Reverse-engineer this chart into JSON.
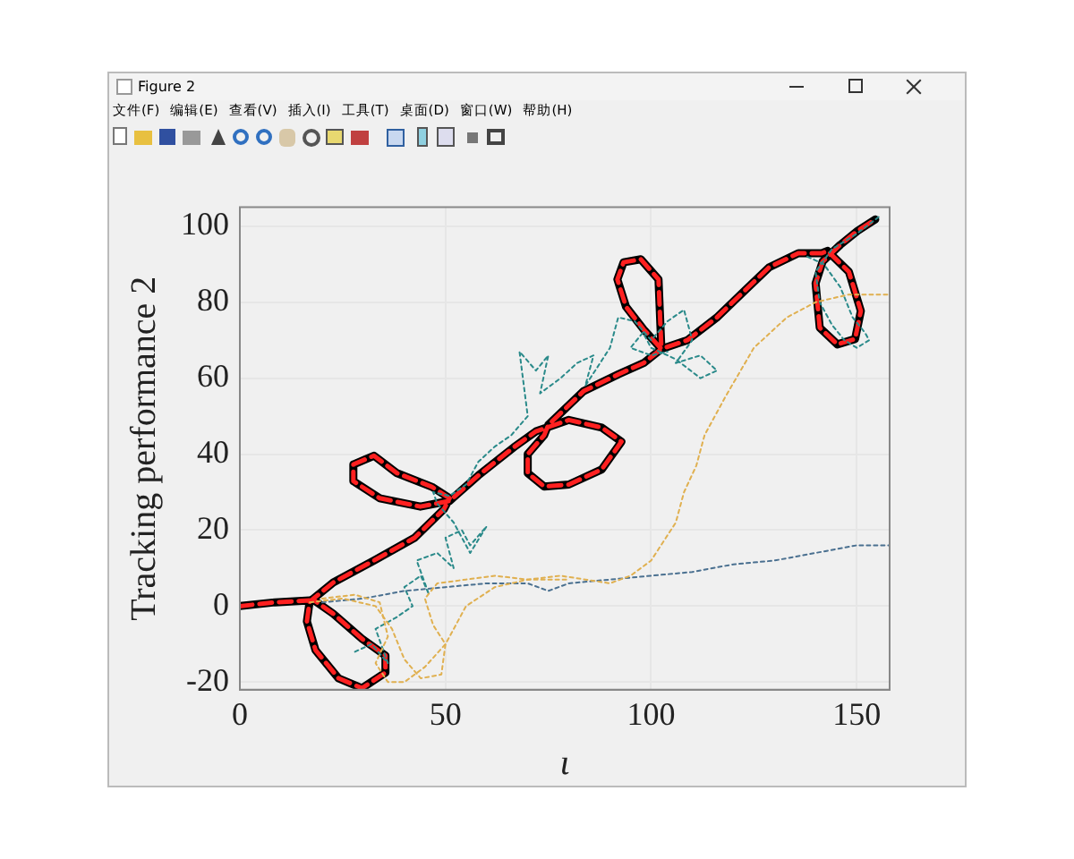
{
  "chart_data": {
    "type": "line",
    "ylabel": "Tracking performance 2",
    "xlabel": "ι",
    "annotations": [
      "Figure 2",
      "文件(F)",
      "编辑(E)",
      "查看(V)",
      "插入(I)",
      "工具(T)",
      "桌面(D)",
      "窗口(W)",
      "帮助(H)"
    ],
    "xlim": [
      0,
      158
    ],
    "ylim": [
      -22,
      105
    ],
    "xticks": [
      0,
      50,
      100,
      150
    ],
    "yticks": [
      -20,
      0,
      20,
      40,
      60,
      80,
      100
    ],
    "grid": true,
    "legend": false,
    "marker": "none",
    "series": [
      {
        "color": "#e0b050",
        "line_style": "dotted",
        "x": [
          17,
          25,
          33,
          37,
          40,
          44,
          49,
          50,
          47,
          45,
          48,
          55,
          62,
          70,
          78,
          84,
          90,
          95,
          100,
          103,
          106,
          108,
          111,
          113,
          118,
          125,
          133,
          140,
          148,
          158
        ],
        "values": [
          1,
          2,
          0,
          -6,
          -14,
          -19,
          -18,
          -10,
          -5,
          2,
          6,
          7,
          8,
          7,
          8,
          7,
          6,
          8,
          12,
          17,
          22,
          30,
          37,
          45,
          55,
          68,
          76,
          80,
          82,
          82
        ]
      },
      {
        "color": "#e0b050",
        "line_style": "dotted",
        "x": [
          20,
          28,
          34,
          36,
          33,
          36,
          40,
          45,
          50,
          55,
          62,
          70,
          80
        ],
        "values": [
          2,
          3,
          1,
          -8,
          -15,
          -20,
          -20,
          -16,
          -10,
          0,
          5,
          7,
          7
        ]
      },
      {
        "color": "#4a7090",
        "line_style": "dotted",
        "x": [
          20,
          30,
          40,
          50,
          60,
          70,
          75,
          80,
          90,
          100,
          110,
          120,
          130,
          140,
          150,
          158
        ],
        "values": [
          1,
          2,
          4,
          5,
          6,
          6,
          4,
          6,
          7,
          8,
          9,
          11,
          12,
          14,
          16,
          16
        ]
      },
      {
        "color": "#2a8a8a",
        "line_style": "dotted",
        "x": [
          28,
          32,
          36,
          33,
          38,
          42,
          40,
          44,
          46,
          43,
          48,
          52,
          50,
          54,
          56,
          60,
          56,
          52,
          48,
          47,
          51,
          55,
          58,
          62,
          66,
          70,
          68,
          72,
          75,
          73,
          78,
          82,
          86,
          84,
          90,
          92,
          96,
          100,
          104,
          108,
          110,
          106,
          112,
          116,
          112,
          106,
          100,
          98,
          95,
          100,
          104
        ],
        "values": [
          -12,
          -10,
          -15,
          -6,
          -3,
          0,
          5,
          8,
          3,
          12,
          14,
          10,
          18,
          20,
          16,
          21,
          14,
          22,
          27,
          30,
          29,
          32,
          38,
          42,
          45,
          50,
          67,
          62,
          66,
          56,
          60,
          64,
          66,
          58,
          68,
          76,
          75,
          70,
          75,
          78,
          70,
          64,
          66,
          62,
          60,
          65,
          68,
          72,
          68,
          66,
          67
        ]
      },
      {
        "color": "#2a8a8a",
        "line_style": "dotted",
        "x": [
          138,
          142,
          146,
          149,
          152,
          153,
          150,
          147,
          144,
          141,
          140,
          144,
          150,
          156
        ],
        "values": [
          92,
          90,
          84,
          76,
          72,
          70,
          68,
          70,
          74,
          80,
          88,
          94,
          98,
          103
        ]
      },
      {
        "color": "#000000",
        "line_style": "solid",
        "x": [
          0,
          8.5,
          17,
          16.3,
          18.4,
          24,
          29.7,
          35.4,
          35.4,
          29.7,
          22.7,
          17.7,
          22.7,
          32.6,
          42.5,
          49.6,
          51,
          46.7,
          38.2,
          32.6,
          27.6,
          27.6,
          34,
          43.9,
          51,
          58,
          66.6,
          72,
          80,
          88,
          92.8,
          88,
          80,
          74,
          70,
          70,
          74,
          75,
          83.6,
          92,
          98.2,
          102.5,
          101.8,
          97.5,
          93.3,
          91.8,
          93.9,
          98.2,
          102.5,
          108.8,
          115.9,
          123,
          128.7,
          135.8,
          141.5,
          142.9,
          148.1,
          151,
          149.6,
          145.3,
          141,
          140,
          141.7,
          146,
          150.2,
          154.5
        ],
        "values": [
          0,
          1,
          1.5,
          -4,
          -11.6,
          -19,
          -21.6,
          -17.5,
          -13,
          -8.6,
          -2,
          1.8,
          6.2,
          12,
          18,
          25.5,
          28.4,
          31.4,
          35,
          39.6,
          37.3,
          32.9,
          28.4,
          26.2,
          27.7,
          34.4,
          41.8,
          46,
          49,
          47,
          43.3,
          36,
          32,
          31.5,
          35,
          40,
          45,
          47.7,
          56.6,
          61,
          64,
          67.7,
          86,
          91.3,
          90.5,
          86,
          78.8,
          72.8,
          67.7,
          70,
          75.9,
          83.3,
          89.2,
          92.9,
          92.9,
          93.5,
          88,
          77.7,
          70.3,
          68.9,
          73.3,
          85,
          90.7,
          95.1,
          98.8,
          101.8
        ]
      },
      {
        "color": "#ff2020",
        "line_style": "dashed",
        "x": [
          0,
          8.5,
          17,
          16.3,
          18.4,
          24,
          29.7,
          35.4,
          35.4,
          29.7,
          22.7,
          17.7,
          22.7,
          32.6,
          42.5,
          49.6,
          51,
          46.7,
          38.2,
          32.6,
          27.6,
          27.6,
          34,
          43.9,
          51,
          58,
          66.6,
          72,
          80,
          88,
          92.8,
          88,
          80,
          74,
          70,
          70,
          74,
          75,
          83.6,
          92,
          98.2,
          102.5,
          101.8,
          97.5,
          93.3,
          91.8,
          93.9,
          98.2,
          102.5,
          108.8,
          115.9,
          123,
          128.7,
          135.8,
          141.5,
          142.9,
          148.1,
          151,
          149.6,
          145.3,
          141,
          140,
          141.7,
          146,
          150.2,
          154.5
        ],
        "values": [
          0,
          1,
          1.5,
          -4,
          -11.6,
          -19,
          -21.6,
          -17.5,
          -13,
          -8.6,
          -2,
          1.8,
          6.2,
          12,
          18,
          25.5,
          28.4,
          31.4,
          35,
          39.6,
          37.3,
          32.9,
          28.4,
          26.2,
          27.7,
          34.4,
          41.8,
          46,
          49,
          47,
          43.3,
          36,
          32,
          31.5,
          35,
          40,
          45,
          47.7,
          56.6,
          61,
          64,
          67.7,
          86,
          91.3,
          90.5,
          86,
          78.8,
          72.8,
          67.7,
          70,
          75.9,
          83.3,
          89.2,
          92.9,
          92.9,
          93.5,
          88,
          77.7,
          70.3,
          68.9,
          73.3,
          85,
          90.7,
          95.1,
          98.8,
          101.8
        ]
      }
    ]
  }
}
